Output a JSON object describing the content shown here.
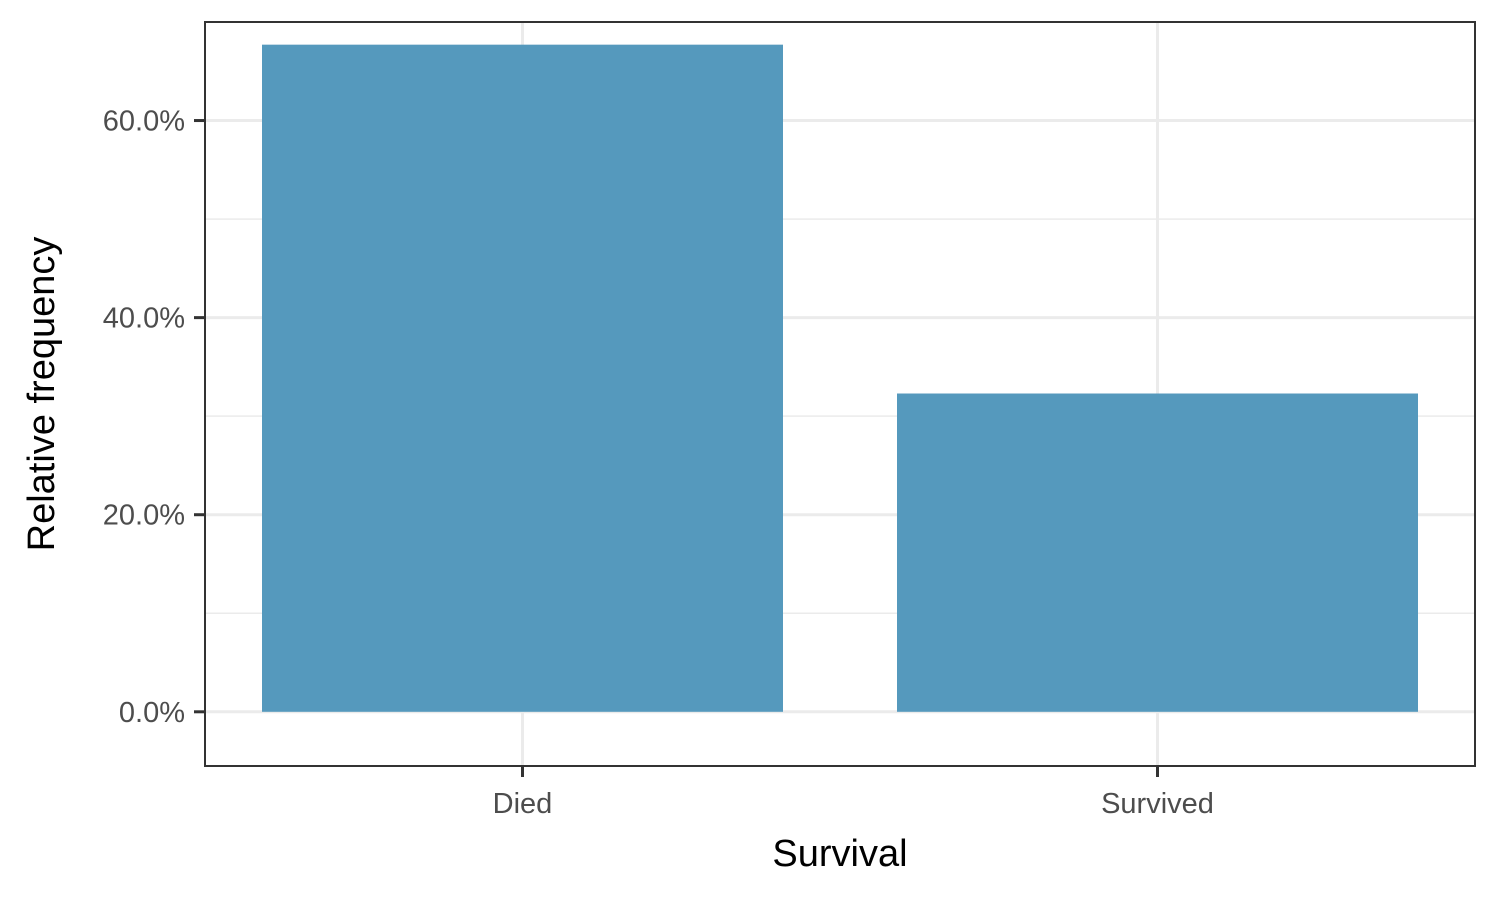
{
  "chart_data": {
    "type": "bar",
    "title": "",
    "xlabel": "Survival",
    "ylabel": "Relative frequency",
    "categories": [
      "Died",
      "Survived"
    ],
    "values": [
      0.677,
      0.323
    ],
    "ylim": [
      -0.055,
      0.7
    ],
    "y_ticks": [
      0,
      0.2,
      0.4,
      0.6
    ],
    "y_tick_labels": [
      "0.0%",
      "20.0%",
      "40.0%",
      "60.0%"
    ],
    "y_minor_ticks": [
      0.1,
      0.3,
      0.5,
      0.7
    ],
    "grid": true,
    "legend": "none",
    "bar_color": "#5599bd",
    "grid_color": "#ebebeb",
    "panel_border_color": "#333333"
  }
}
